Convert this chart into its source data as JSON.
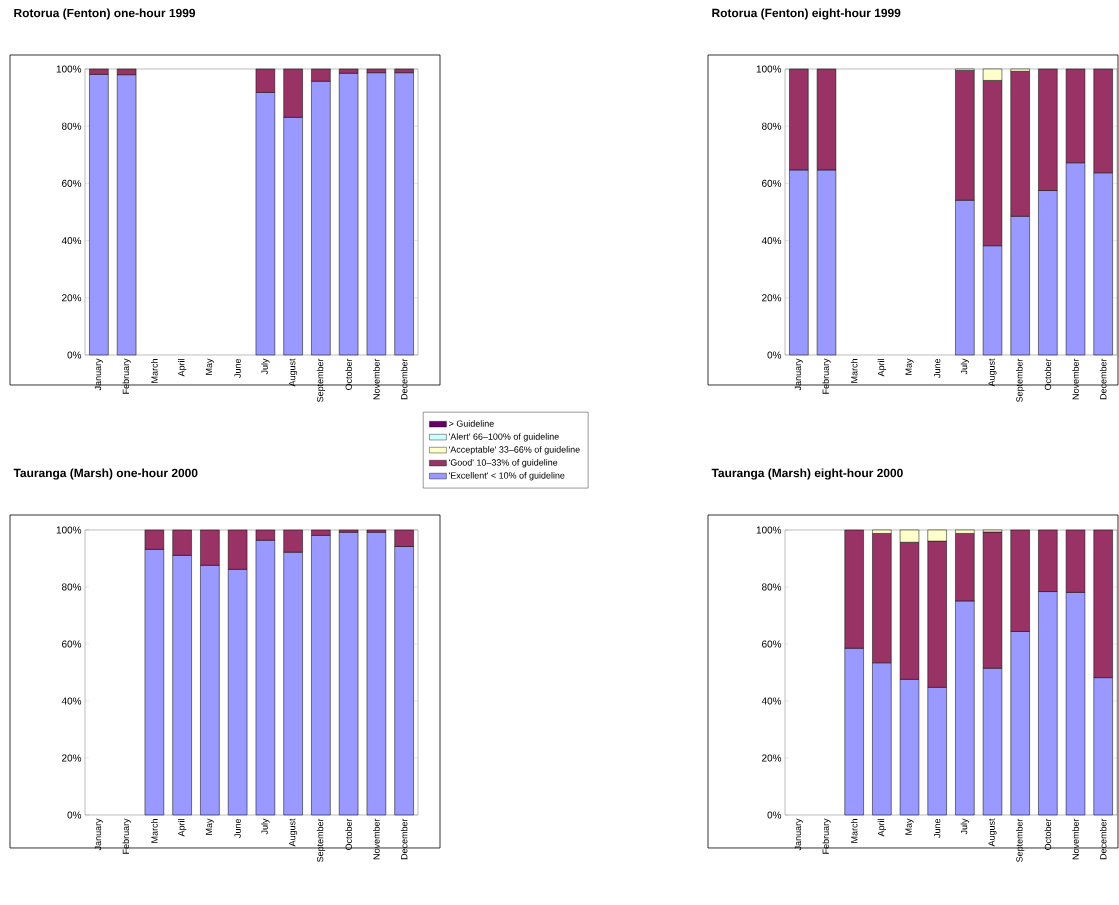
{
  "chart_data": [
    {
      "type": "bar",
      "title": "Rotorua (Fenton) one-hour 1999",
      "stacked": true,
      "legend": "right",
      "categories": [
        "January",
        "February",
        "March",
        "April",
        "May",
        "June",
        "July",
        "August",
        "September",
        "October",
        "November",
        "December"
      ],
      "ylim": [
        0,
        100
      ],
      "yticks": [
        {
          "value": 0,
          "label": "0%"
        },
        {
          "value": 20,
          "label": "20%"
        },
        {
          "value": 40,
          "label": "40%"
        },
        {
          "value": 60,
          "label": "60%"
        },
        {
          "value": 80,
          "label": "80%"
        },
        {
          "value": 100,
          "label": "100%"
        }
      ],
      "series": [
        {
          "name": "'Excellent' < 10% of guideline",
          "color": "#9999ff",
          "values": [
            98.1,
            98.0,
            null,
            null,
            null,
            null,
            91.8,
            83.1,
            95.7,
            98.5,
            98.7,
            98.7
          ]
        },
        {
          "name": "'Good' 10–33% of guideline",
          "color": "#993366",
          "values": [
            1.9,
            2.0,
            null,
            null,
            null,
            null,
            8.2,
            16.9,
            4.3,
            1.5,
            1.3,
            1.3
          ]
        },
        {
          "name": "'Acceptable' 33–66% of guideline",
          "color": "#ffffcc",
          "values": [
            null,
            null,
            null,
            null,
            null,
            null,
            null,
            null,
            null,
            null,
            null,
            null
          ]
        },
        {
          "name": "'Alert' 66–100% of guideline",
          "color": "#ccffff",
          "values": [
            null,
            null,
            null,
            null,
            null,
            null,
            null,
            null,
            null,
            null,
            null,
            null
          ]
        },
        {
          "name": "> Guideline",
          "color": "#660066",
          "values": [
            null,
            null,
            null,
            null,
            null,
            null,
            null,
            null,
            null,
            null,
            null,
            null
          ]
        }
      ]
    },
    {
      "type": "bar",
      "title": "Rotorua (Fenton) eight-hour 1999",
      "stacked": true,
      "categories": [
        "January",
        "February",
        "March",
        "April",
        "May",
        "June",
        "July",
        "August",
        "September",
        "October",
        "November",
        "December"
      ],
      "ylim": [
        0,
        100
      ],
      "yticks": [
        {
          "value": 0,
          "label": "0%"
        },
        {
          "value": 20,
          "label": "20%"
        },
        {
          "value": 40,
          "label": "40%"
        },
        {
          "value": 60,
          "label": "60%"
        },
        {
          "value": 80,
          "label": "80%"
        },
        {
          "value": 100,
          "label": "100%"
        }
      ],
      "series": [
        {
          "color": "#9999ff",
          "values": [
            64.7,
            64.7,
            null,
            null,
            null,
            null,
            54.1,
            38.2,
            48.5,
            57.5,
            67.2,
            63.7
          ]
        },
        {
          "color": "#993366",
          "values": [
            35.3,
            35.3,
            null,
            null,
            null,
            null,
            45.4,
            57.8,
            50.7,
            42.5,
            32.8,
            36.3
          ]
        },
        {
          "color": "#ffffcc",
          "values": [
            null,
            null,
            null,
            null,
            null,
            null,
            0.5,
            4.0,
            0.8,
            null,
            null,
            null
          ]
        }
      ]
    },
    {
      "type": "bar",
      "title": "Tauranga (Marsh) one-hour 2000",
      "stacked": true,
      "categories": [
        "January",
        "February",
        "March",
        "April",
        "May",
        "June",
        "July",
        "August",
        "September",
        "October",
        "November",
        "December"
      ],
      "ylim": [
        0,
        100
      ],
      "yticks": [
        {
          "value": 0,
          "label": "0%"
        },
        {
          "value": 20,
          "label": "20%"
        },
        {
          "value": 40,
          "label": "40%"
        },
        {
          "value": 60,
          "label": "60%"
        },
        {
          "value": 80,
          "label": "80%"
        },
        {
          "value": 100,
          "label": "100%"
        }
      ],
      "series": [
        {
          "color": "#9999ff",
          "values": [
            null,
            null,
            93.2,
            91.1,
            87.6,
            86.2,
            96.4,
            92.2,
            98.1,
            99.2,
            99.2,
            94.2
          ]
        },
        {
          "color": "#993366",
          "values": [
            null,
            null,
            6.8,
            8.9,
            12.4,
            13.8,
            3.6,
            7.8,
            1.9,
            0.8,
            0.8,
            5.8
          ]
        }
      ]
    },
    {
      "type": "bar",
      "title": "Tauranga (Marsh) eight-hour 2000",
      "stacked": true,
      "categories": [
        "January",
        "February",
        "March",
        "April",
        "May",
        "June",
        "July",
        "August",
        "September",
        "October",
        "November",
        "December"
      ],
      "ylim": [
        0,
        100
      ],
      "yticks": [
        {
          "value": 0,
          "label": "0%"
        },
        {
          "value": 20,
          "label": "20%"
        },
        {
          "value": 40,
          "label": "40%"
        },
        {
          "value": 60,
          "label": "60%"
        },
        {
          "value": 80,
          "label": "80%"
        },
        {
          "value": 100,
          "label": "100%"
        }
      ],
      "series": [
        {
          "color": "#9999ff",
          "values": [
            null,
            null,
            58.5,
            53.4,
            47.6,
            44.8,
            75.1,
            51.5,
            64.4,
            78.4,
            78.1,
            48.2
          ]
        },
        {
          "color": "#993366",
          "values": [
            null,
            null,
            41.5,
            45.4,
            48.1,
            51.3,
            23.7,
            47.8,
            35.6,
            21.6,
            21.9,
            51.8
          ]
        },
        {
          "color": "#ffffcc",
          "values": [
            null,
            null,
            null,
            1.2,
            4.3,
            3.9,
            1.2,
            0.7,
            null,
            null,
            null,
            null
          ]
        }
      ]
    }
  ]
}
